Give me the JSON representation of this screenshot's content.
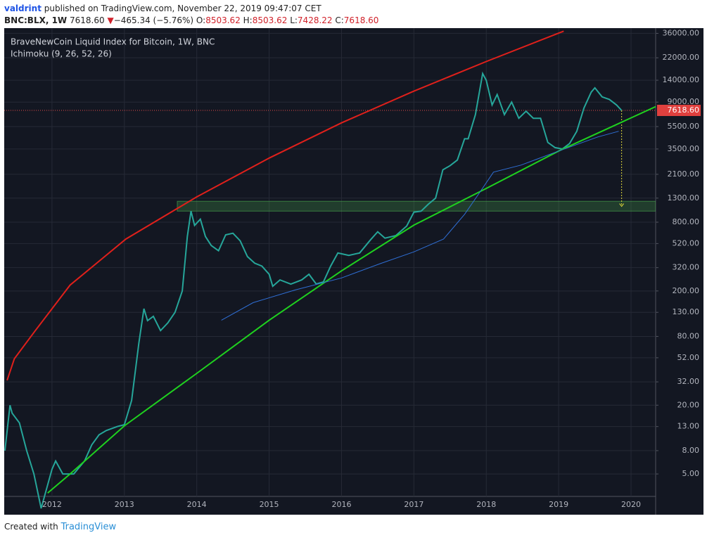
{
  "header": {
    "author": "valdrint",
    "published": "published on TradingView.com, November 22, 2019 09:47:07 CET",
    "symbol": "BNC:BLX, 1W",
    "last": "7618.60",
    "arrow": "▼",
    "change": "−465.34 (−5.76%)",
    "ohlc": [
      {
        "label": "O:",
        "value": "8503.62"
      },
      {
        "label": "H:",
        "value": "8503.62"
      },
      {
        "label": "L:",
        "value": "7428.22"
      },
      {
        "label": "C:",
        "value": "7618.60"
      }
    ]
  },
  "footer": {
    "created": "Created with",
    "brand": "TradingView"
  },
  "chart_data": {
    "type": "line",
    "title": "BraveNewCoin Liquid Index for Bitcoin, 1W, BNC",
    "subtitle": "Ichimoku (9, 26, 52, 26)",
    "log_scale": true,
    "grid": true,
    "xlim": [
      2011.34,
      2020.34
    ],
    "xticks": [
      2012,
      2013,
      2014,
      2015,
      2016,
      2017,
      2018,
      2019,
      2020
    ],
    "ylim": [
      2.2,
      40000
    ],
    "yticks": [
      {
        "value": 36000,
        "label": "36000.00"
      },
      {
        "value": 22000,
        "label": "22000.00"
      },
      {
        "value": 14000,
        "label": "14000.00"
      },
      {
        "value": 9000,
        "label": "9000.00"
      },
      {
        "value": 5500,
        "label": "5500.00"
      },
      {
        "value": 3500,
        "label": "3500.00"
      },
      {
        "value": 2100,
        "label": "2100.00"
      },
      {
        "value": 1300,
        "label": "1300.00"
      },
      {
        "value": 800,
        "label": "800.00"
      },
      {
        "value": 520,
        "label": "520.00"
      },
      {
        "value": 320,
        "label": "320.00"
      },
      {
        "value": 200,
        "label": "200.00"
      },
      {
        "value": 130,
        "label": "130.00"
      },
      {
        "value": 80,
        "label": "80.00"
      },
      {
        "value": 52,
        "label": "52.00"
      },
      {
        "value": 32,
        "label": "32.00"
      },
      {
        "value": 20,
        "label": "20.00"
      },
      {
        "value": 13,
        "label": "13.00"
      },
      {
        "value": 8,
        "label": "8.00"
      },
      {
        "value": 5,
        "label": "5.00"
      }
    ],
    "last_price": {
      "value": 7618.6,
      "label": "7618.60"
    },
    "zone": [
      1000,
      1220
    ],
    "target": 1100,
    "series": [
      {
        "color": "#26a69a",
        "x": [
          2011.35,
          2011.42,
          2011.45,
          2011.55,
          2011.65,
          2011.75,
          2011.85,
          2012.0,
          2012.05,
          2012.15,
          2012.3,
          2012.45,
          2012.55,
          2012.65,
          2012.75,
          2012.9,
          2013.0,
          2013.1,
          2013.2,
          2013.27,
          2013.32,
          2013.4,
          2013.5,
          2013.6,
          2013.7,
          2013.8,
          2013.87,
          2013.92,
          2013.97,
          2014.05,
          2014.12,
          2014.2,
          2014.3,
          2014.4,
          2014.5,
          2014.6,
          2014.7,
          2014.8,
          2014.9,
          2015.0,
          2015.05,
          2015.15,
          2015.3,
          2015.45,
          2015.55,
          2015.65,
          2015.75,
          2015.85,
          2015.95,
          2016.1,
          2016.25,
          2016.4,
          2016.5,
          2016.6,
          2016.75,
          2016.9,
          2017.0,
          2017.1,
          2017.2,
          2017.3,
          2017.4,
          2017.5,
          2017.6,
          2017.7,
          2017.75,
          2017.85,
          2017.95,
          2018.0,
          2018.08,
          2018.15,
          2018.25,
          2018.35,
          2018.45,
          2018.55,
          2018.65,
          2018.75,
          2018.85,
          2018.95,
          2019.05,
          2019.15,
          2019.25,
          2019.35,
          2019.45,
          2019.5,
          2019.6,
          2019.7,
          2019.8,
          2019.87
        ],
        "values": [
          8,
          20,
          17,
          14,
          8,
          5,
          2.5,
          5.5,
          6.5,
          5,
          5,
          6.5,
          9,
          11,
          12,
          13,
          13.5,
          22,
          70,
          140,
          110,
          120,
          90,
          105,
          130,
          200,
          600,
          1000,
          750,
          850,
          600,
          500,
          450,
          620,
          640,
          550,
          400,
          350,
          330,
          280,
          220,
          250,
          230,
          250,
          280,
          230,
          240,
          330,
          430,
          410,
          430,
          560,
          660,
          580,
          610,
          740,
          980,
          1000,
          1150,
          1300,
          2300,
          2500,
          2800,
          4300,
          4300,
          7000,
          16000,
          14000,
          8500,
          10500,
          7000,
          9000,
          6500,
          7500,
          6500,
          6500,
          4000,
          3600,
          3500,
          3900,
          5000,
          8000,
          11000,
          12000,
          10000,
          9500,
          8500,
          7618.6
        ]
      },
      {
        "color": "#e0201b",
        "x": [
          2011.38,
          2011.48,
          2011.77,
          2012.25,
          2013.02,
          2014,
          2015,
          2016,
          2017,
          2018,
          2019.07
        ],
        "values": [
          33,
          51,
          90,
          225,
          569,
          1333,
          2913,
          5930,
          11240,
          20400,
          37650
        ]
      },
      {
        "color": "#1fd11f",
        "x": [
          2011.94,
          2012.25,
          2013,
          2014,
          2015,
          2016,
          2017,
          2018,
          2019,
          2020.34
        ],
        "values": [
          3.4,
          5,
          13.2,
          38,
          111,
          300,
          755,
          1580,
          3356,
          8220
        ]
      },
      {
        "color": "#2f6fd6",
        "x": [
          2014.34,
          2014.78,
          2015.36,
          2016,
          2016.53,
          2017,
          2017.41,
          2017.7,
          2017.9,
          2018.1,
          2018.48,
          2019,
          2019.54,
          2019.83
        ],
        "values": [
          111,
          158,
          204,
          260,
          346,
          440,
          569,
          938,
          1431,
          2195,
          2530,
          3356,
          4460,
          5000
        ]
      }
    ]
  }
}
